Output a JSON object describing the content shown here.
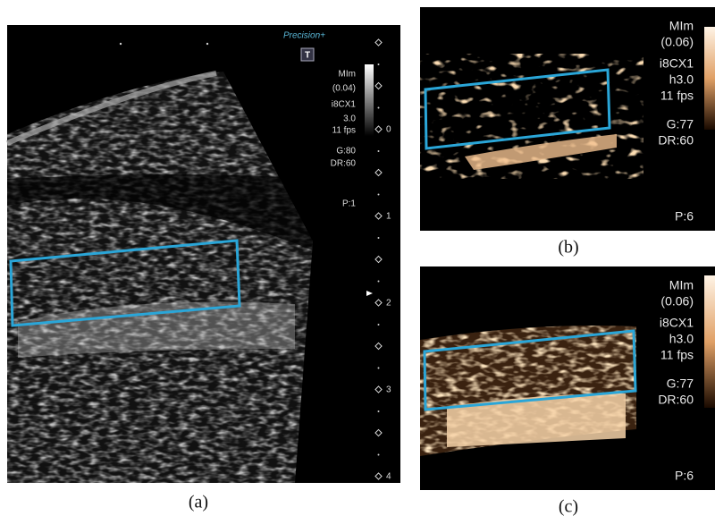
{
  "panels": [
    {
      "caption": "(a)",
      "brand": "Precision+",
      "icon": "T",
      "labels": [
        "MIm",
        "(0.04)",
        "i8CX1",
        "3.0",
        "11 fps",
        "G:80",
        "DR:60",
        "P:1"
      ],
      "depth_ticks": [
        "0",
        "1",
        "2",
        "3",
        "4"
      ]
    },
    {
      "caption": "(b)",
      "labels": [
        "MIm",
        "(0.06)",
        "i8CX1",
        "h3.0",
        "11 fps",
        "G:77",
        "DR:60",
        "P:6"
      ]
    },
    {
      "caption": "(c)",
      "labels": [
        "MIm",
        "(0.06)",
        "i8CX1",
        "h3.0",
        "11 fps",
        "G:77",
        "DR:60",
        "P:6"
      ]
    }
  ]
}
